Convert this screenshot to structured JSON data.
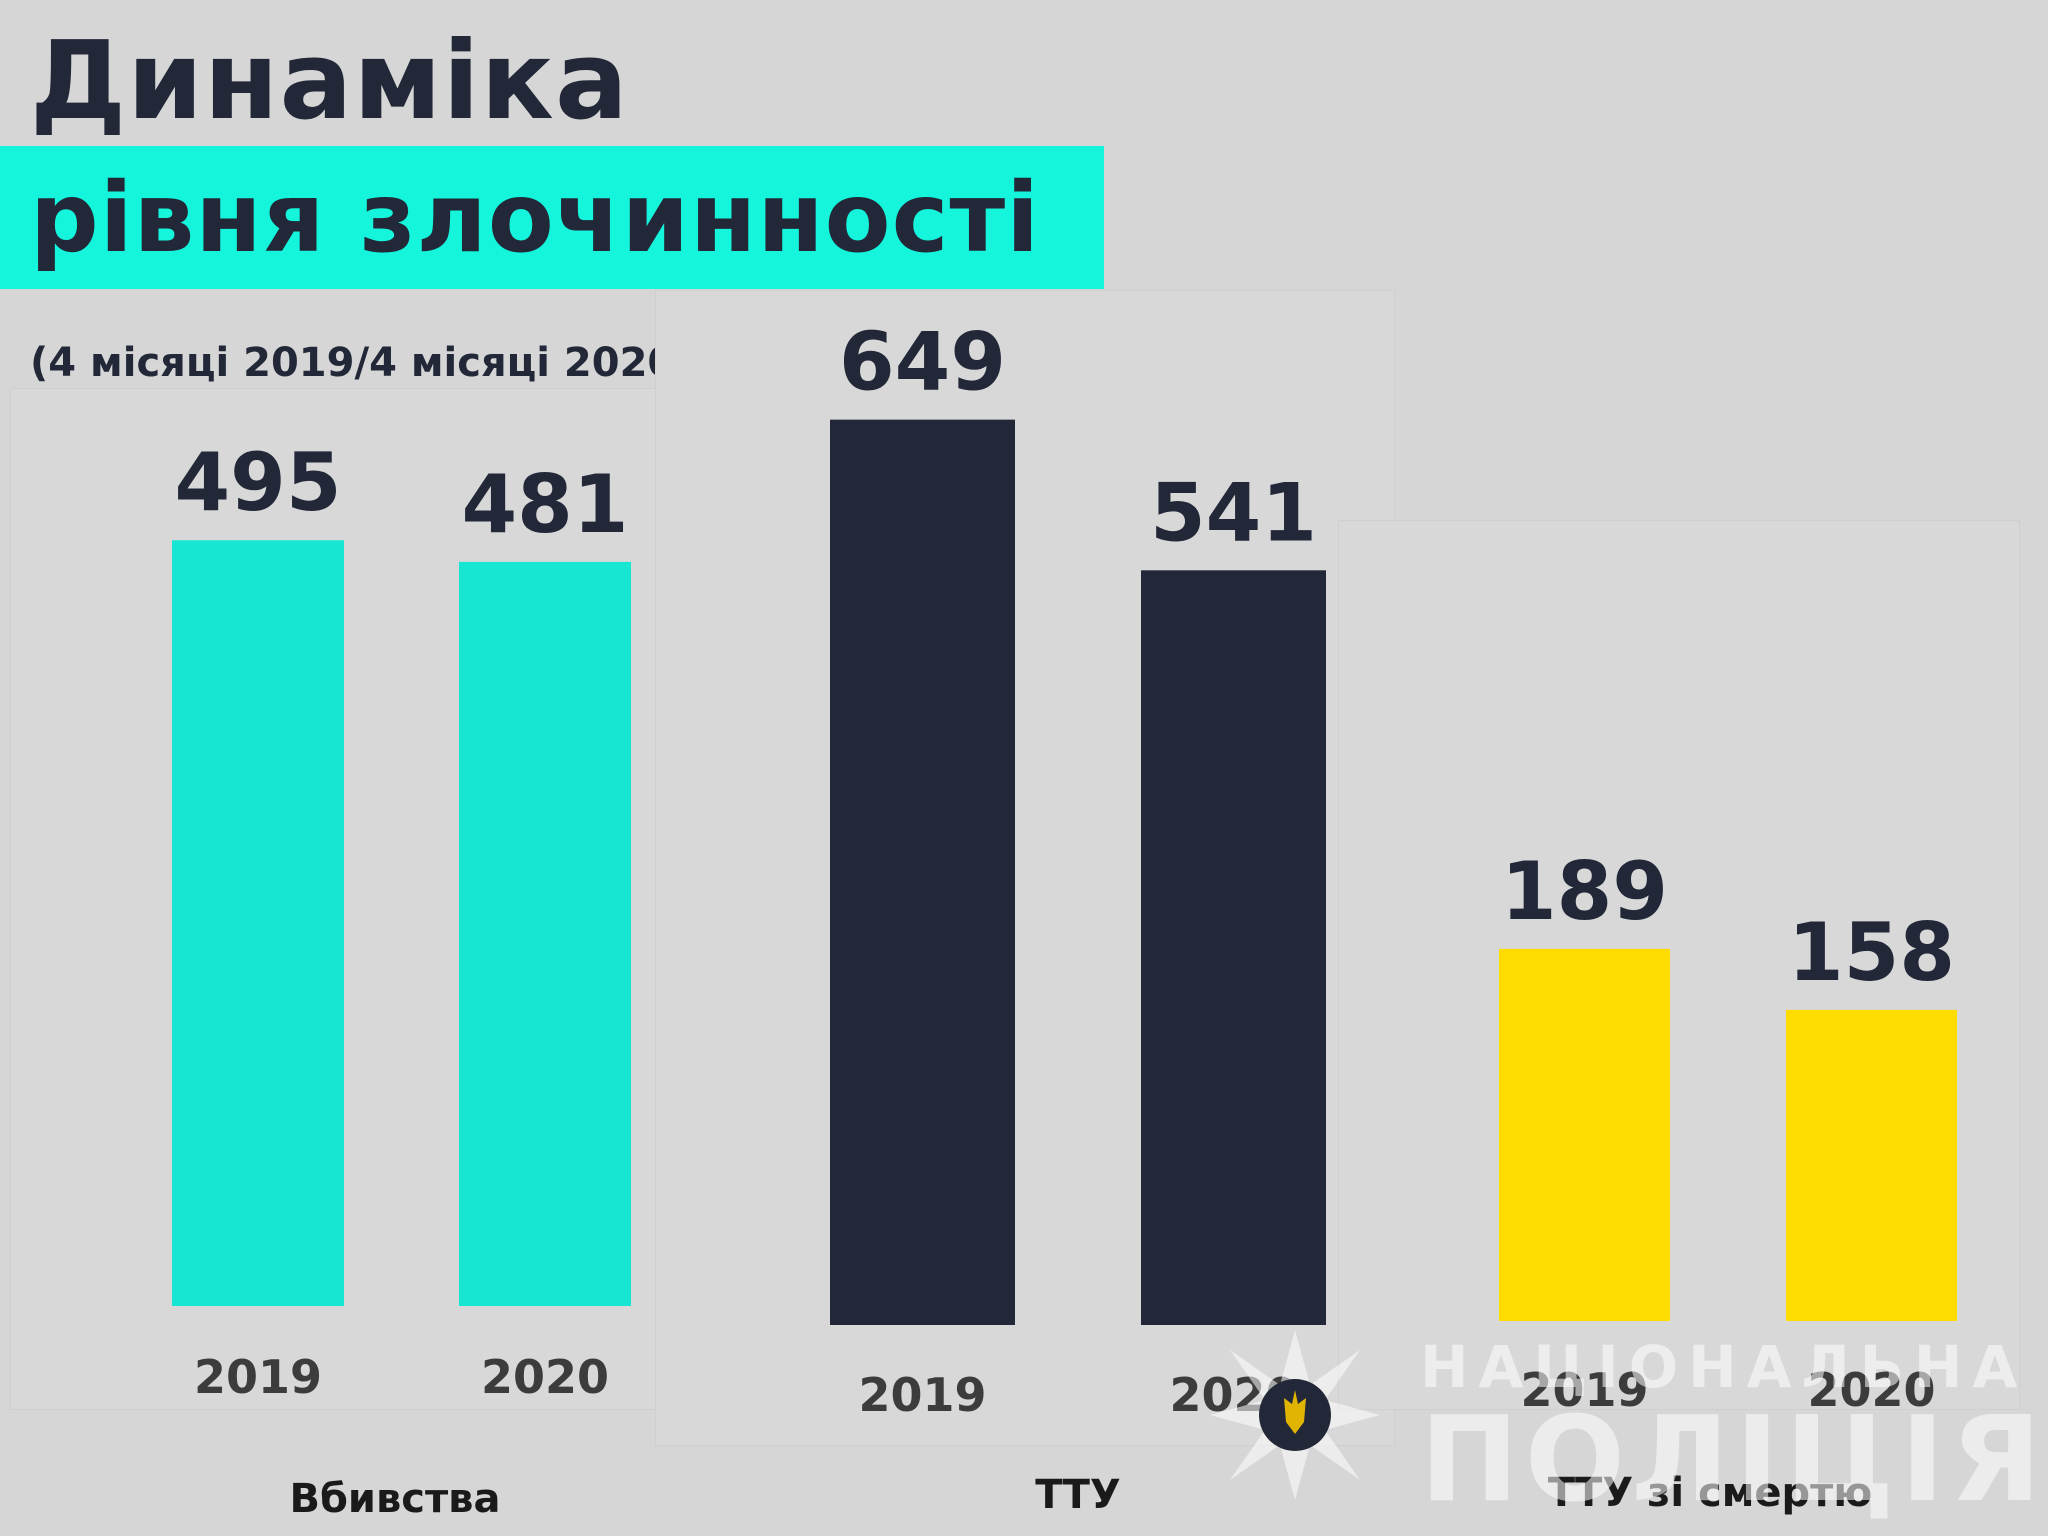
{
  "title": {
    "line1": "Динаміка",
    "line2": "рівня злочинності"
  },
  "subtitle": "(4 місяці 2019/4 місяці 2020)",
  "colors": {
    "accent_band": "#14f5dc",
    "series_murders": "#17e6d3",
    "series_ttu": "#222838",
    "series_ttu_death": "#ffdc00",
    "background": "#d6d6d6"
  },
  "watermark": {
    "line1": "НАЦІОНАЛЬНА",
    "line2": "ПОЛІЦІЯ",
    "emblem": "police-star-emblem-icon"
  },
  "chart_data": {
    "type": "bar",
    "title": "Динаміка рівня злочинності",
    "subtitle": "(4 місяці 2019/4 місяці 2020)",
    "xlabel": "",
    "ylabel": "",
    "grid": false,
    "legend": "none",
    "groups": [
      {
        "name": "Вбивства",
        "color": "#17e6d3",
        "categories": [
          "2019",
          "2020"
        ],
        "values": [
          495,
          481
        ]
      },
      {
        "name": "ТТУ",
        "color": "#222838",
        "categories": [
          "2019",
          "2020"
        ],
        "values": [
          649,
          541
        ]
      },
      {
        "name": "ТТУ зі смертю",
        "color": "#ffdc00",
        "categories": [
          "2019",
          "2020"
        ],
        "values": [
          189,
          158
        ]
      }
    ]
  }
}
